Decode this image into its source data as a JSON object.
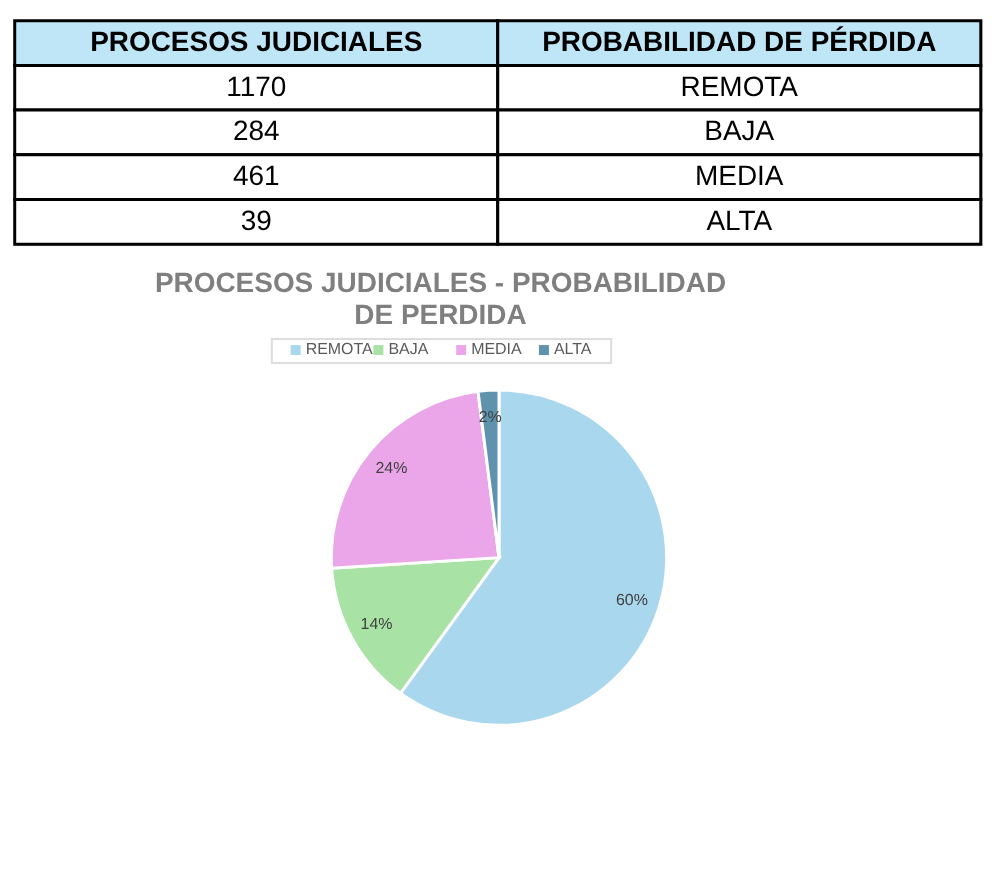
{
  "chart_data": [
    {
      "type": "other",
      "annotations": [
        "PROCESOS JUDICIALES",
        "PROBABILIDAD DE PÉRDIDA"
      ],
      "categories": [
        "REMOTA",
        "BAJA",
        "MEDIA",
        "ALTA"
      ],
      "values": [
        1170,
        284,
        461,
        39
      ],
      "data_labels": true
    },
    {
      "type": "pie",
      "title": "PROCESOS JUDICIALES - PROBABILIDAD DE PERDIDA",
      "categories": [
        "REMOTA",
        "BAJA",
        "MEDIA",
        "ALTA"
      ],
      "values": [
        60,
        14,
        24,
        2
      ],
      "colors": [
        "#a9d8ee",
        "#a8e2a4",
        "#eaa6e8",
        "#5f93ad"
      ],
      "value_labels": [
        "60%",
        "14%",
        "24%",
        "2%"
      ],
      "legend": "top"
    }
  ]
}
